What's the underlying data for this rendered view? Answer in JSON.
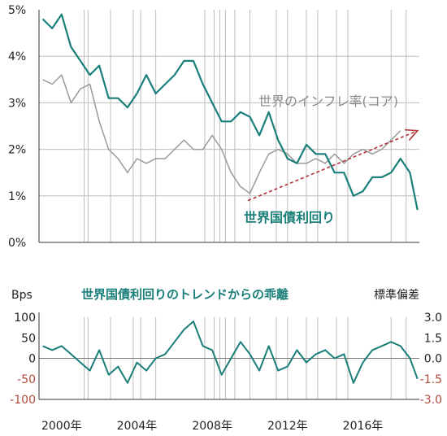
{
  "colors": {
    "teal": "#1a7f79",
    "grey": "#9a9a9a",
    "red_arrow": "#b3303a",
    "red_text": "#b14a3c",
    "grid": "#bdbdbd"
  },
  "chart_data": [
    {
      "type": "line",
      "x_range": [
        1998.8,
        2019.0
      ],
      "ylim": [
        0,
        5
      ],
      "y_ticks": [
        "0%",
        "1%",
        "2%",
        "3%",
        "4%",
        "5%"
      ],
      "vertical_gridlines": [
        2001.2,
        2001.4,
        2002.6,
        2003.8,
        2004.2,
        2005.0,
        2007.6,
        2008.1,
        2008.4,
        2008.7,
        2009.2,
        2010.0,
        2011.4,
        2012.0,
        2013.0,
        2013.6,
        2014.6,
        2015.2,
        2017.5,
        2018.3
      ],
      "series": [
        {
          "name": "世界国債利回り",
          "color": "#1a7f79",
          "x": [
            1999.0,
            1999.5,
            2000.0,
            2000.5,
            2001.0,
            2001.5,
            2002.0,
            2002.5,
            2003.0,
            2003.5,
            2004.0,
            2004.5,
            2005.0,
            2005.5,
            2006.0,
            2006.5,
            2007.0,
            2007.5,
            2008.0,
            2008.5,
            2009.0,
            2009.5,
            2010.0,
            2010.5,
            2011.0,
            2011.5,
            2012.0,
            2012.5,
            2013.0,
            2013.5,
            2014.0,
            2014.5,
            2015.0,
            2015.5,
            2016.0,
            2016.5,
            2017.0,
            2017.5,
            2018.0,
            2018.5,
            2018.9
          ],
          "values": [
            4.8,
            4.6,
            4.9,
            4.2,
            3.9,
            3.6,
            3.8,
            3.1,
            3.1,
            2.9,
            3.2,
            3.6,
            3.2,
            3.4,
            3.6,
            3.9,
            3.9,
            3.4,
            3.0,
            2.6,
            2.6,
            2.8,
            2.7,
            2.3,
            2.8,
            2.2,
            1.8,
            1.7,
            2.1,
            1.9,
            1.9,
            1.5,
            1.5,
            1.0,
            1.1,
            1.4,
            1.4,
            1.5,
            1.8,
            1.5,
            0.7
          ]
        },
        {
          "name": "世界のインフレ率(コア)",
          "color": "#9a9a9a",
          "x": [
            1999.0,
            1999.5,
            2000.0,
            2000.5,
            2001.0,
            2001.5,
            2002.0,
            2002.5,
            2003.0,
            2003.5,
            2004.0,
            2004.5,
            2005.0,
            2005.5,
            2006.0,
            2006.5,
            2007.0,
            2007.5,
            2008.0,
            2008.5,
            2009.0,
            2009.5,
            2010.0,
            2010.5,
            2011.0,
            2011.5,
            2012.0,
            2012.5,
            2013.0,
            2013.5,
            2014.0,
            2014.5,
            2015.0,
            2015.5,
            2016.0,
            2016.5,
            2017.0,
            2017.5,
            2018.0
          ],
          "values": [
            3.5,
            3.4,
            3.6,
            3.0,
            3.3,
            3.4,
            2.6,
            2.0,
            1.8,
            1.5,
            1.8,
            1.7,
            1.8,
            1.8,
            2.0,
            2.2,
            2.0,
            2.0,
            2.3,
            2.0,
            1.5,
            1.2,
            1.05,
            1.5,
            1.9,
            2.0,
            1.9,
            1.7,
            1.7,
            1.8,
            1.7,
            1.9,
            1.7,
            1.9,
            2.0,
            1.9,
            2.0,
            2.2,
            2.4
          ]
        }
      ],
      "trend_arrow": {
        "x": [
          2009.9,
          2018.9
        ],
        "values": [
          0.9,
          2.4
        ],
        "color": "#b3303a",
        "style": "dashed"
      },
      "annotations": {
        "inflation_label": "世界のインフレ率(コア)",
        "yield_label": "世界国債利回り"
      }
    },
    {
      "type": "line",
      "title": "世界国債利回りのトレンドからの乖離",
      "x_range": [
        1998.8,
        2019.0
      ],
      "y_left": {
        "label": "Bps",
        "ylim": [
          -100,
          100
        ],
        "ticks": [
          "100",
          "50",
          "0",
          "-50",
          "-100"
        ]
      },
      "y_right": {
        "label": "標準偏差",
        "ylim": [
          -3.0,
          3.0
        ],
        "ticks": [
          "3.0",
          "1.5",
          "0.0",
          "-1.5",
          "-3.0"
        ]
      },
      "series": [
        {
          "name": "乖離",
          "color": "#1a7f79",
          "x": [
            1999.0,
            1999.5,
            2000.0,
            2000.5,
            2001.0,
            2001.5,
            2002.0,
            2002.5,
            2003.0,
            2003.5,
            2004.0,
            2004.5,
            2005.0,
            2005.5,
            2006.0,
            2006.5,
            2007.0,
            2007.5,
            2008.0,
            2008.5,
            2009.0,
            2009.5,
            2010.0,
            2010.5,
            2011.0,
            2011.5,
            2012.0,
            2012.5,
            2013.0,
            2013.5,
            2014.0,
            2014.5,
            2015.0,
            2015.5,
            2016.0,
            2016.5,
            2017.0,
            2017.5,
            2018.0,
            2018.5,
            2018.9
          ],
          "values": [
            30,
            20,
            30,
            10,
            -10,
            -30,
            20,
            -40,
            -20,
            -60,
            -10,
            -30,
            0,
            10,
            40,
            70,
            90,
            30,
            20,
            -40,
            0,
            40,
            10,
            -30,
            30,
            -30,
            -20,
            20,
            -10,
            10,
            20,
            0,
            10,
            -60,
            -10,
            20,
            30,
            40,
            30,
            0,
            -50
          ]
        }
      ]
    }
  ],
  "x_axis": {
    "labels": [
      "2000年",
      "2004年",
      "2008年",
      "2012年",
      "2016年"
    ],
    "label_years": [
      2000,
      2004,
      2008,
      2012,
      2016
    ]
  }
}
